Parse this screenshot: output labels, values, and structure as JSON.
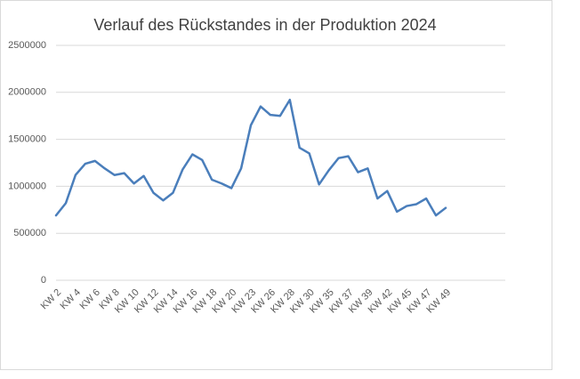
{
  "chart_data": {
    "type": "line",
    "title": "Verlauf des Rückstandes in der Produktion 2024",
    "categories": [
      "KW 2",
      null,
      "KW 4",
      null,
      "KW 6",
      null,
      "KW 8",
      null,
      "KW 10",
      null,
      "KW 12",
      null,
      "KW 14",
      null,
      "KW 16",
      null,
      "KW 18",
      null,
      "KW 20",
      null,
      "KW 23",
      null,
      "KW 26",
      null,
      "KW 28",
      null,
      "KW 30",
      null,
      "KW 35",
      null,
      "KW 37",
      null,
      "KW 39",
      null,
      "KW 42",
      null,
      "KW 45",
      null,
      "KW 47",
      null,
      "KW 49"
    ],
    "series": [
      {
        "color": "#4a7ebb",
        "values": [
          690000,
          820000,
          1120000,
          1240000,
          1270000,
          1190000,
          1120000,
          1140000,
          1030000,
          1110000,
          930000,
          850000,
          930000,
          1180000,
          1340000,
          1280000,
          1070000,
          1030000,
          980000,
          1190000,
          1650000,
          1850000,
          1760000,
          1750000,
          1920000,
          1410000,
          1350000,
          1020000,
          1170000,
          1300000,
          1320000,
          1150000,
          1190000,
          870000,
          950000,
          730000,
          790000,
          810000,
          870000,
          690000,
          770000
        ]
      }
    ],
    "ylim": [
      0,
      2500000
    ],
    "yticks": [
      0,
      500000,
      1000000,
      1500000,
      2000000,
      2500000
    ],
    "grid": true
  }
}
